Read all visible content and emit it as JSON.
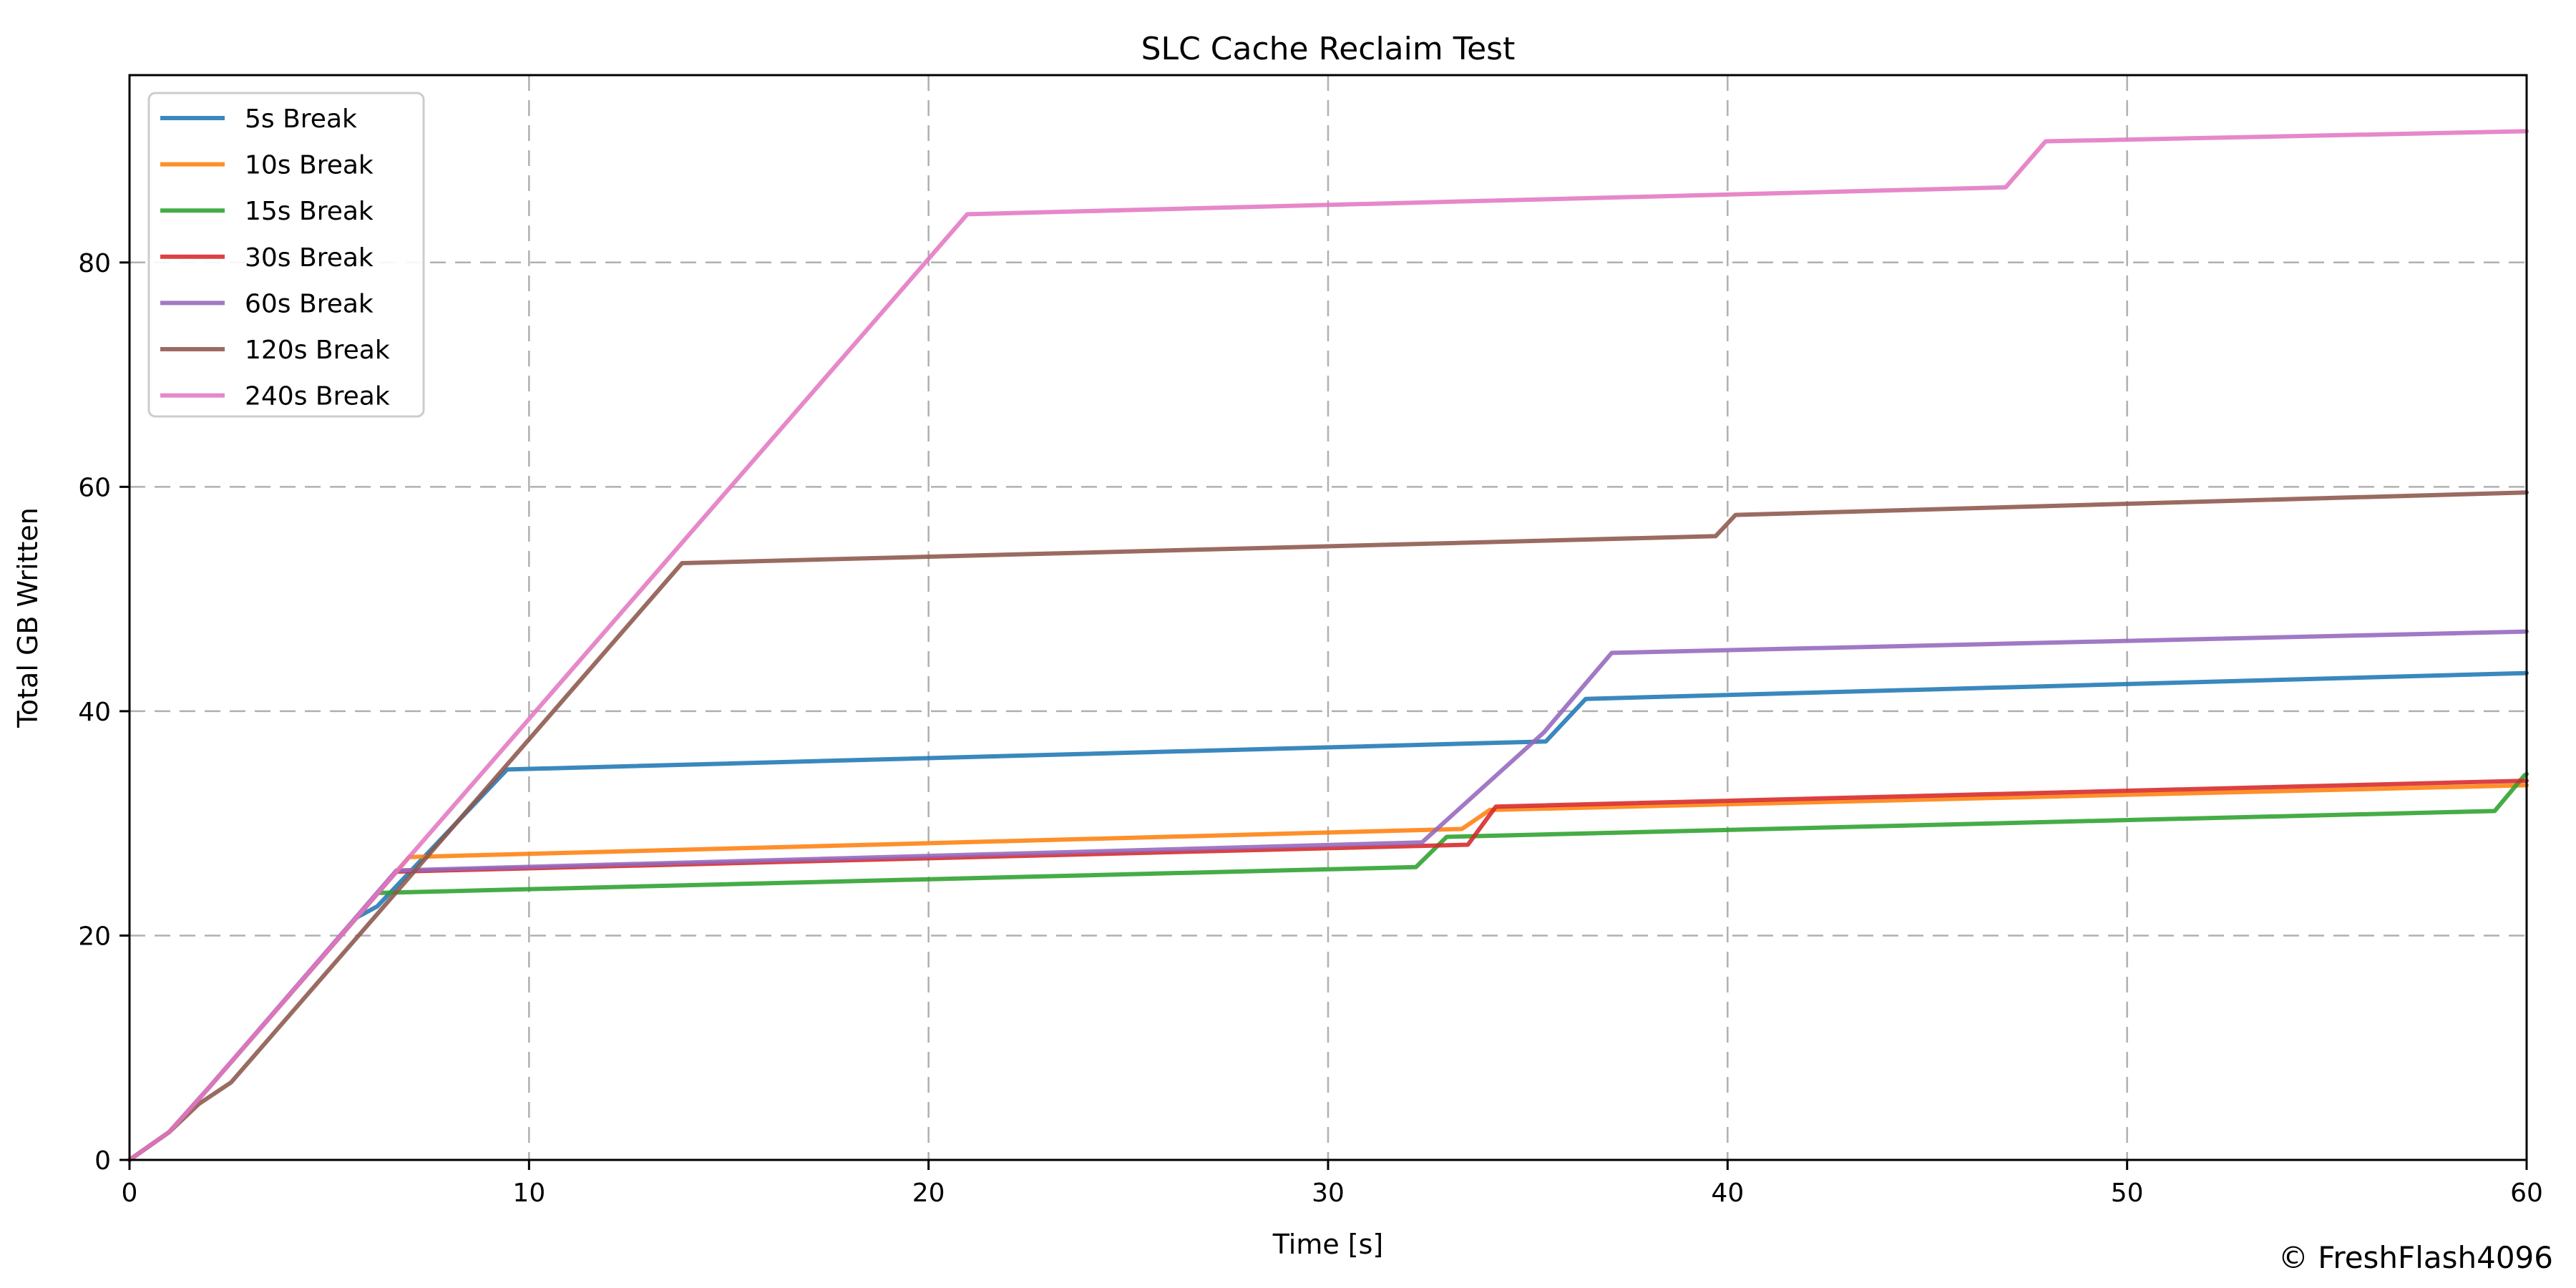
{
  "chart_data": {
    "type": "line",
    "title": "SLC Cache Reclaim Test",
    "xlabel": "Time [s]",
    "ylabel": "Total GB Written",
    "watermark": "© FreshFlash4096",
    "xlim": [
      0,
      60
    ],
    "ylim": [
      0,
      96.7
    ],
    "xticks": [
      0,
      10,
      20,
      30,
      40,
      50,
      60
    ],
    "yticks": [
      0,
      20,
      40,
      60,
      80
    ],
    "grid": true,
    "grid_style": "dashed",
    "legend_position": "upper left",
    "series": [
      {
        "name": "5s Break",
        "color": "#1f77b4",
        "points": [
          [
            0,
            0
          ],
          [
            1,
            2.5
          ],
          [
            2,
            6.5
          ],
          [
            5.68,
            21.6
          ],
          [
            6.2,
            22.6
          ],
          [
            9.45,
            34.8
          ],
          [
            35.45,
            37.3
          ],
          [
            36.45,
            41.1
          ],
          [
            60,
            43.4
          ]
        ]
      },
      {
        "name": "10s Break",
        "color": "#ff7f0e",
        "points": [
          [
            0,
            0
          ],
          [
            1,
            2.5
          ],
          [
            2,
            6.5
          ],
          [
            7.0,
            27.0
          ],
          [
            33.35,
            29.5
          ],
          [
            34.05,
            31.2
          ],
          [
            60,
            33.4
          ]
        ]
      },
      {
        "name": "15s Break",
        "color": "#2ca02c",
        "points": [
          [
            0,
            0
          ],
          [
            1,
            2.5
          ],
          [
            2,
            6.5
          ],
          [
            6.22,
            23.8
          ],
          [
            32.2,
            26.1
          ],
          [
            32.97,
            28.8
          ],
          [
            59.2,
            31.1
          ],
          [
            59.95,
            34.3
          ],
          [
            60,
            34.4
          ]
        ]
      },
      {
        "name": "30s Break",
        "color": "#d62728",
        "points": [
          [
            0,
            0
          ],
          [
            1,
            2.5
          ],
          [
            2,
            6.5
          ],
          [
            6.68,
            25.7
          ],
          [
            33.5,
            28.1
          ],
          [
            34.2,
            31.5
          ],
          [
            60,
            33.8
          ]
        ]
      },
      {
        "name": "60s Break",
        "color": "#9467bd",
        "points": [
          [
            0,
            0
          ],
          [
            1,
            2.5
          ],
          [
            2,
            6.5
          ],
          [
            6.68,
            25.8
          ],
          [
            32.35,
            28.3
          ],
          [
            35.4,
            38.1
          ],
          [
            37.1,
            45.2
          ],
          [
            60,
            47.1
          ]
        ]
      },
      {
        "name": "120s Break",
        "color": "#8c564b",
        "points": [
          [
            0,
            0
          ],
          [
            1,
            2.5
          ],
          [
            1.74,
            5.0
          ],
          [
            2.54,
            6.9
          ],
          [
            13.83,
            53.2
          ],
          [
            39.7,
            55.6
          ],
          [
            40.2,
            57.5
          ],
          [
            60,
            59.5
          ]
        ]
      },
      {
        "name": "240s Break",
        "color": "#e377c2",
        "points": [
          [
            0,
            0
          ],
          [
            1,
            2.5
          ],
          [
            2,
            6.5
          ],
          [
            20.97,
            84.3
          ],
          [
            46.96,
            86.7
          ],
          [
            47.96,
            90.8
          ],
          [
            60,
            91.7
          ]
        ]
      }
    ]
  },
  "colors": {
    "background": "#ffffff",
    "spine": "#000000",
    "grid": "#b0b0b0",
    "tick": "#000000",
    "legend_border": "#cccccc",
    "legend_bg": "#ffffff",
    "watermark": "#b3b3b3"
  }
}
